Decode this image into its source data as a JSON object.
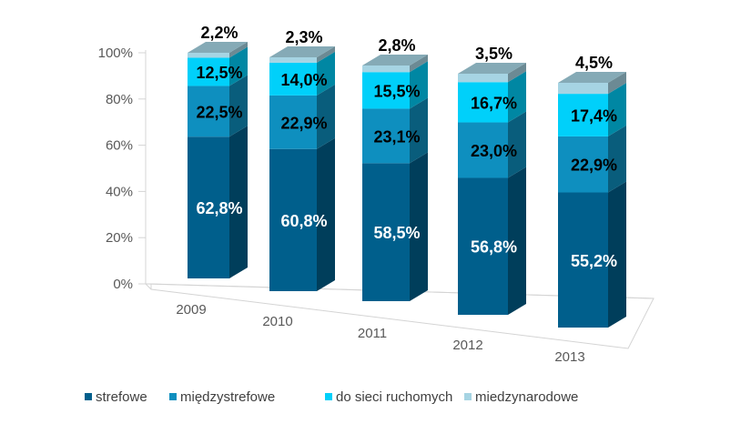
{
  "chart_data": {
    "type": "bar",
    "stacked": true,
    "three_d": true,
    "categories": [
      "2009",
      "2010",
      "2011",
      "2012",
      "2013"
    ],
    "series": [
      {
        "name": "strefowe",
        "color": "#005F8C",
        "values": [
          62.8,
          60.8,
          58.5,
          56.8,
          55.2
        ],
        "labels": [
          "62,8%",
          "60,8%",
          "58,5%",
          "56,8%",
          "55,2%"
        ]
      },
      {
        "name": "międzystrefowe",
        "color": "#0E8FBF",
        "values": [
          22.5,
          22.9,
          23.1,
          23.0,
          22.9
        ],
        "labels": [
          "22,5%",
          "22,9%",
          "23,1%",
          "23,0%",
          "22,9%"
        ]
      },
      {
        "name": "do sieci ruchomych",
        "color": "#00D0FA",
        "values": [
          12.5,
          14.0,
          15.5,
          16.7,
          17.4
        ],
        "labels": [
          "12,5%",
          "14,0%",
          "15,5%",
          "16,7%",
          "17,4%"
        ]
      },
      {
        "name": "miedzynarodowe",
        "color": "#A6D4E3",
        "values": [
          2.2,
          2.3,
          2.8,
          3.5,
          4.5
        ],
        "labels": [
          "2,2%",
          "2,3%",
          "2,8%",
          "3,5%",
          "4,5%"
        ]
      }
    ],
    "y_ticks": [
      "0%",
      "20%",
      "40%",
      "60%",
      "80%",
      "100%"
    ],
    "ylim": [
      0,
      100
    ],
    "legend_position": "bottom",
    "grid": false
  }
}
